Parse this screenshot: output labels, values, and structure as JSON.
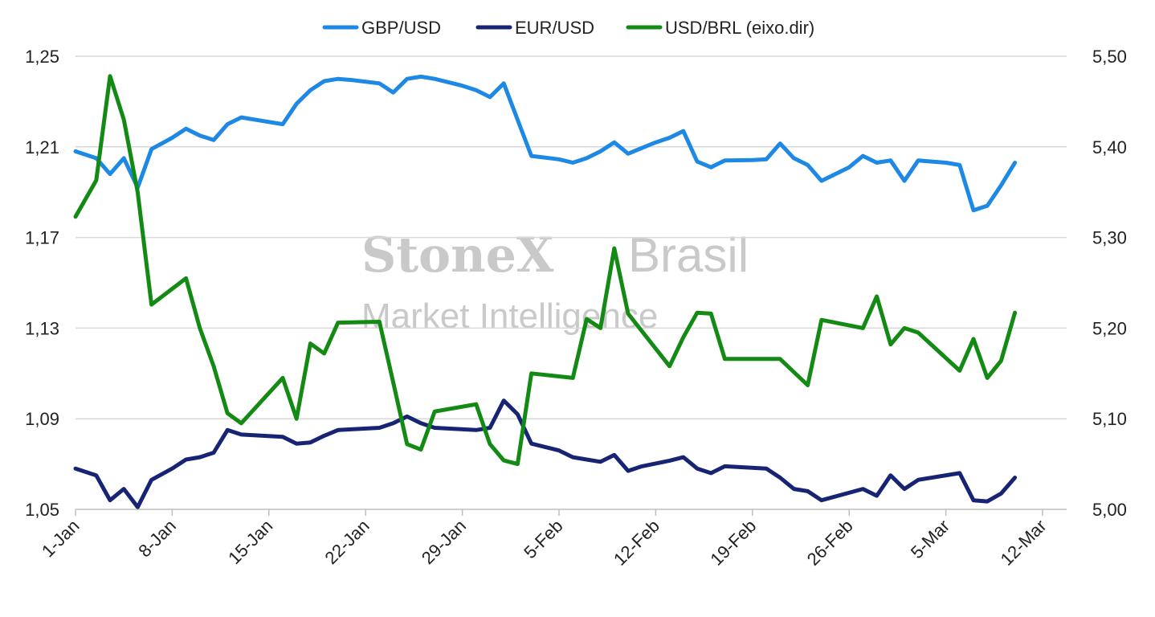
{
  "watermark": {
    "line1_a": "StoneX",
    "line1_b": "Brasil",
    "line2": "Market Intelligence"
  },
  "chart_data": {
    "type": "line",
    "legend_position": "top",
    "grid": true,
    "x_tick_labels": [
      "1-Jan",
      "8-Jan",
      "15-Jan",
      "22-Jan",
      "29-Jan",
      "5-Feb",
      "12-Feb",
      "19-Feb",
      "26-Feb",
      "5-Mar",
      "12-Mar"
    ],
    "x_tick_days": [
      0,
      7,
      14,
      21,
      28,
      35,
      42,
      49,
      56,
      63,
      70
    ],
    "y_left": {
      "range": [
        1.05,
        1.25
      ],
      "ticks": [
        "1,05",
        "1,09",
        "1,13",
        "1,17",
        "1,21",
        "1,25"
      ],
      "tick_values": [
        1.05,
        1.09,
        1.13,
        1.17,
        1.21,
        1.25
      ]
    },
    "y_right": {
      "range": [
        5.0,
        5.5
      ],
      "ticks": [
        "5,00",
        "5,10",
        "5,20",
        "5,30",
        "5,40",
        "5,50"
      ],
      "tick_values": [
        5.0,
        5.1,
        5.2,
        5.3,
        5.4,
        5.5
      ]
    },
    "series": [
      {
        "name": "GBP/USD",
        "axis": "left",
        "color": "#1e88e5",
        "points": [
          [
            0,
            1.208
          ],
          [
            1.5,
            1.205
          ],
          [
            2.5,
            1.198
          ],
          [
            3.5,
            1.205
          ],
          [
            4.5,
            1.192
          ],
          [
            5.5,
            1.209
          ],
          [
            7,
            1.214
          ],
          [
            8,
            1.218
          ],
          [
            9,
            1.215
          ],
          [
            10,
            1.213
          ],
          [
            11,
            1.22
          ],
          [
            12,
            1.223
          ],
          [
            14,
            1.221
          ],
          [
            15,
            1.22
          ],
          [
            16,
            1.229
          ],
          [
            17,
            1.235
          ],
          [
            18,
            1.239
          ],
          [
            19,
            1.24
          ],
          [
            20,
            1.2395
          ],
          [
            22,
            1.238
          ],
          [
            23,
            1.234
          ],
          [
            24,
            1.24
          ],
          [
            25,
            1.241
          ],
          [
            26,
            1.24
          ],
          [
            28,
            1.237
          ],
          [
            29,
            1.235
          ],
          [
            30,
            1.232
          ],
          [
            31,
            1.238
          ],
          [
            32,
            1.222
          ],
          [
            33,
            1.206
          ],
          [
            35,
            1.2045
          ],
          [
            36,
            1.203
          ],
          [
            37,
            1.205
          ],
          [
            38,
            1.208
          ],
          [
            39,
            1.212
          ],
          [
            40,
            1.207
          ],
          [
            41,
            1.2095
          ],
          [
            42,
            1.212
          ],
          [
            43,
            1.214
          ],
          [
            44,
            1.217
          ],
          [
            45,
            1.2035
          ],
          [
            46,
            1.201
          ],
          [
            47,
            1.204
          ],
          [
            49,
            1.2042
          ],
          [
            50,
            1.2045
          ],
          [
            51,
            1.2115
          ],
          [
            52,
            1.205
          ],
          [
            53,
            1.202
          ],
          [
            54,
            1.195
          ],
          [
            56,
            1.201
          ],
          [
            57,
            1.206
          ],
          [
            58,
            1.203
          ],
          [
            59,
            1.204
          ],
          [
            60,
            1.195
          ],
          [
            61,
            1.204
          ],
          [
            63,
            1.203
          ],
          [
            64,
            1.202
          ],
          [
            65,
            1.182
          ],
          [
            66,
            1.184
          ],
          [
            67,
            1.193
          ],
          [
            68,
            1.203
          ]
        ]
      },
      {
        "name": "EUR/USD",
        "axis": "left",
        "color": "#172474",
        "points": [
          [
            0,
            1.068
          ],
          [
            1.5,
            1.065
          ],
          [
            2.5,
            1.054
          ],
          [
            3.5,
            1.059
          ],
          [
            4.5,
            1.051
          ],
          [
            5.5,
            1.063
          ],
          [
            7,
            1.068
          ],
          [
            8,
            1.072
          ],
          [
            9,
            1.073
          ],
          [
            10,
            1.075
          ],
          [
            11,
            1.085
          ],
          [
            12,
            1.083
          ],
          [
            15,
            1.082
          ],
          [
            16,
            1.079
          ],
          [
            17,
            1.0795
          ],
          [
            18,
            1.0825
          ],
          [
            19,
            1.085
          ],
          [
            22,
            1.086
          ],
          [
            23,
            1.088
          ],
          [
            24,
            1.091
          ],
          [
            25,
            1.088
          ],
          [
            26,
            1.086
          ],
          [
            29,
            1.085
          ],
          [
            30,
            1.086
          ],
          [
            31,
            1.098
          ],
          [
            32,
            1.092
          ],
          [
            33,
            1.079
          ],
          [
            35,
            1.076
          ],
          [
            36,
            1.073
          ],
          [
            37,
            1.072
          ],
          [
            38,
            1.071
          ],
          [
            39,
            1.074
          ],
          [
            40,
            1.067
          ],
          [
            41,
            1.069
          ],
          [
            43,
            1.0715
          ],
          [
            44,
            1.073
          ],
          [
            45,
            1.068
          ],
          [
            46,
            1.066
          ],
          [
            47,
            1.069
          ],
          [
            50,
            1.068
          ],
          [
            51,
            1.064
          ],
          [
            52,
            1.059
          ],
          [
            53,
            1.058
          ],
          [
            54,
            1.054
          ],
          [
            57,
            1.059
          ],
          [
            58,
            1.056
          ],
          [
            59,
            1.065
          ],
          [
            60,
            1.059
          ],
          [
            61,
            1.063
          ],
          [
            64,
            1.066
          ],
          [
            65,
            1.054
          ],
          [
            66,
            1.0535
          ],
          [
            67,
            1.057
          ],
          [
            68,
            1.064
          ]
        ]
      },
      {
        "name": "USD/BRL (eixo.dir)",
        "axis": "right",
        "color": "#138a13",
        "points": [
          [
            0,
            5.323
          ],
          [
            1.5,
            5.363
          ],
          [
            2.5,
            5.478
          ],
          [
            3.5,
            5.43
          ],
          [
            4.5,
            5.35
          ],
          [
            5.5,
            5.226
          ],
          [
            8,
            5.255
          ],
          [
            9,
            5.2
          ],
          [
            10,
            5.158
          ],
          [
            11,
            5.106
          ],
          [
            12,
            5.095
          ],
          [
            15,
            5.145
          ],
          [
            16,
            5.1
          ],
          [
            17,
            5.183
          ],
          [
            18,
            5.172
          ],
          [
            19,
            5.206
          ],
          [
            22,
            5.207
          ],
          [
            23,
            5.14
          ],
          [
            24,
            5.072
          ],
          [
            25,
            5.066
          ],
          [
            26,
            5.108
          ],
          [
            29,
            5.116
          ],
          [
            30,
            5.072
          ],
          [
            31,
            5.054
          ],
          [
            32,
            5.05
          ],
          [
            33,
            5.15
          ],
          [
            36,
            5.145
          ],
          [
            37,
            5.21
          ],
          [
            38,
            5.2
          ],
          [
            39,
            5.288
          ],
          [
            40,
            5.216
          ],
          [
            43,
            5.158
          ],
          [
            44,
            5.19
          ],
          [
            45,
            5.217
          ],
          [
            46,
            5.216
          ],
          [
            47,
            5.166
          ],
          [
            51,
            5.166
          ],
          [
            53,
            5.137
          ],
          [
            54,
            5.209
          ],
          [
            57,
            5.2
          ],
          [
            58,
            5.235
          ],
          [
            59,
            5.182
          ],
          [
            60,
            5.2
          ],
          [
            61,
            5.195
          ],
          [
            64,
            5.153
          ],
          [
            65,
            5.188
          ],
          [
            66,
            5.145
          ],
          [
            67,
            5.164
          ],
          [
            68,
            5.217
          ]
        ]
      }
    ]
  }
}
